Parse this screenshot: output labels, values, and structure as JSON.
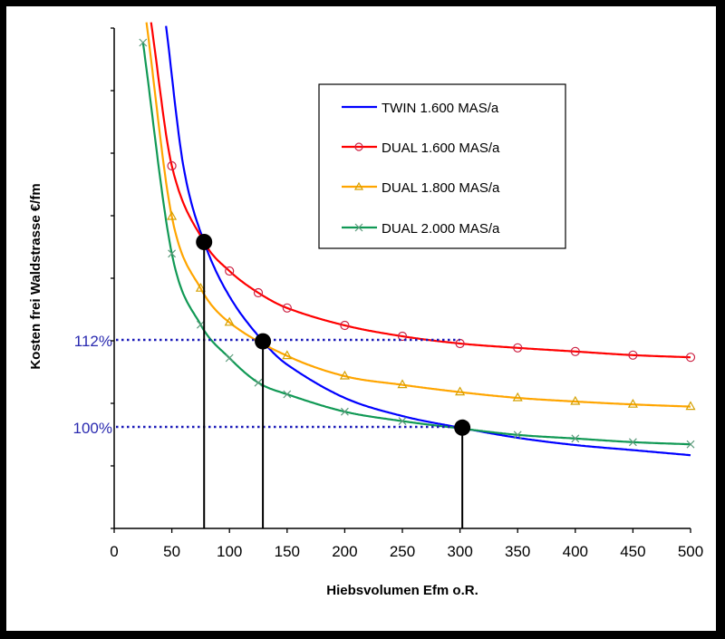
{
  "chart_data": {
    "type": "line",
    "title": "",
    "xlabel": "Hiebsvolumen Efm o.R.",
    "ylabel": "Kosten frei Waldstrasse €/fm",
    "xlim": [
      0,
      500
    ],
    "ylim": [
      86,
      155
    ],
    "x_ticks": [
      "0",
      "50",
      "100",
      "150",
      "200",
      "250",
      "300",
      "350",
      "400",
      "450",
      "500"
    ],
    "y_ticks_labeled": false,
    "grid": false,
    "legend_position": "top-center",
    "reference_lines": [
      {
        "label": "112%",
        "y": 112,
        "x_end": 300,
        "color": "#1a1ab8"
      },
      {
        "label": "100%",
        "y": 100,
        "x_end": 300,
        "color": "#1a1ab8"
      }
    ],
    "highlight_points": [
      {
        "x": 78,
        "y": 125.5
      },
      {
        "x": 129,
        "y": 111.8
      },
      {
        "x": 302,
        "y": 99.9
      }
    ],
    "series": [
      {
        "name": "TWIN 1.600 MAS/a",
        "color": "#0000ff",
        "marker": "none",
        "x": [
          45,
          60,
          78,
          100,
          129,
          150,
          200,
          250,
          300,
          350,
          400,
          450,
          500
        ],
        "y": [
          155.3,
          136,
          125.5,
          118,
          111.8,
          108.6,
          104,
          101.5,
          99.9,
          98.5,
          97.5,
          96.8,
          96.1
        ]
      },
      {
        "name": "DUAL 1.600 MAS/a",
        "color": "#ff0000",
        "marker": "circle",
        "x": [
          32,
          50,
          78,
          100,
          125,
          150,
          200,
          250,
          300,
          350,
          400,
          450,
          500
        ],
        "y": [
          155.8,
          136,
          125.5,
          121.5,
          118.5,
          116.4,
          114,
          112.5,
          111.5,
          110.9,
          110.4,
          109.9,
          109.6
        ],
        "marker_x": [
          50,
          100,
          125,
          150,
          200,
          250,
          300,
          350,
          400,
          450,
          500
        ]
      },
      {
        "name": "DUAL 1.800 MAS/a",
        "color": "#ffa500",
        "marker": "triangle",
        "x": [
          28,
          50,
          75,
          100,
          150,
          200,
          250,
          300,
          350,
          400,
          450,
          500
        ],
        "y": [
          155.8,
          129,
          119.1,
          114.4,
          109.8,
          107,
          105.8,
          104.8,
          104,
          103.5,
          103.1,
          102.8
        ],
        "marker_x": [
          50,
          75,
          100,
          150,
          200,
          250,
          300,
          350,
          400,
          450,
          500
        ]
      },
      {
        "name": "DUAL 2.000 MAS/a",
        "color": "#119955",
        "marker": "x",
        "x": [
          25,
          50,
          75,
          100,
          125,
          150,
          200,
          250,
          300,
          350,
          400,
          450,
          500
        ],
        "y": [
          153,
          123.9,
          114.1,
          109.5,
          106.1,
          104.5,
          102.1,
          100.8,
          99.8,
          98.9,
          98.4,
          97.9,
          97.6
        ],
        "marker_x": [
          25,
          50,
          75,
          100,
          125,
          150,
          200,
          250,
          350,
          400,
          450,
          500
        ]
      }
    ]
  }
}
